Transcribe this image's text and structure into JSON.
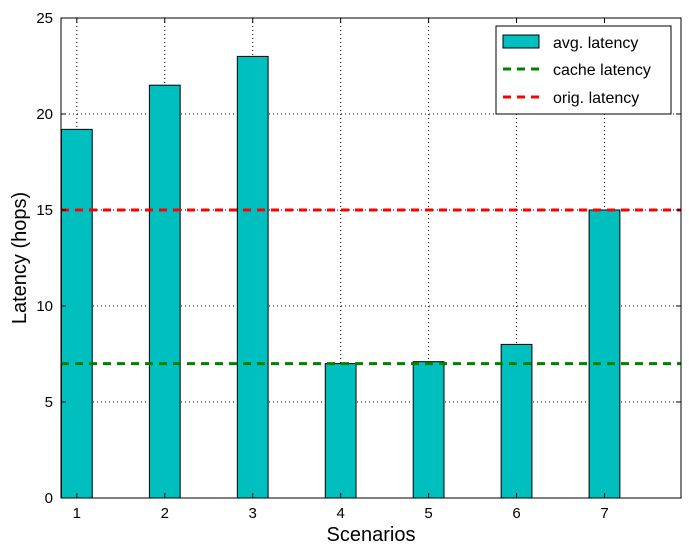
{
  "chart_data": {
    "type": "bar",
    "title": "",
    "xlabel": "Scenarios",
    "ylabel": "Latency (hops)",
    "x_ticks": [
      "1",
      "2",
      "3",
      "4",
      "5",
      "6",
      "7"
    ],
    "y_ticks": [
      "0",
      "5",
      "10",
      "15",
      "20",
      "25"
    ],
    "ylim": [
      0,
      25
    ],
    "grid": true,
    "legend_position": "top-right",
    "series": [
      {
        "name": "avg. latency",
        "kind": "bar",
        "color": "#00bfbf",
        "x": [
          1,
          2,
          3,
          4,
          5,
          6,
          7
        ],
        "values": [
          19.2,
          21.5,
          23.0,
          7.0,
          7.1,
          8.0,
          15.0
        ]
      },
      {
        "name": "cache latency",
        "kind": "hline",
        "color": "#008000",
        "value": 7.0
      },
      {
        "name": "orig. latency",
        "kind": "hline",
        "color": "#ff0000",
        "value": 15.0
      }
    ]
  }
}
